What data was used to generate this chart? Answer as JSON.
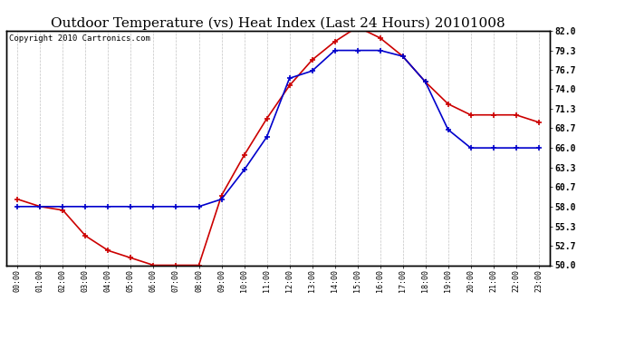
{
  "title": "Outdoor Temperature (vs) Heat Index (Last 24 Hours) 20101008",
  "copyright": "Copyright 2010 Cartronics.com",
  "x_labels": [
    "00:00",
    "01:00",
    "02:00",
    "03:00",
    "04:00",
    "05:00",
    "06:00",
    "07:00",
    "08:00",
    "09:00",
    "10:00",
    "11:00",
    "12:00",
    "13:00",
    "14:00",
    "15:00",
    "16:00",
    "17:00",
    "18:00",
    "19:00",
    "20:00",
    "21:00",
    "22:00",
    "23:00"
  ],
  "temp_data": [
    59.0,
    58.0,
    57.5,
    54.0,
    52.0,
    51.0,
    50.0,
    50.0,
    50.0,
    59.5,
    65.0,
    70.0,
    74.5,
    78.0,
    80.5,
    82.5,
    81.0,
    78.5,
    75.0,
    72.0,
    70.5,
    70.5,
    70.5,
    69.5
  ],
  "heat_data": [
    58.0,
    58.0,
    58.0,
    58.0,
    58.0,
    58.0,
    58.0,
    58.0,
    58.0,
    59.0,
    63.0,
    67.5,
    75.5,
    76.5,
    79.3,
    79.3,
    79.3,
    78.5,
    75.0,
    68.5,
    66.0,
    66.0,
    66.0,
    66.0
  ],
  "temp_color": "#cc0000",
  "heat_color": "#0000cc",
  "ylim": [
    50.0,
    82.0
  ],
  "yticks": [
    50.0,
    52.7,
    55.3,
    58.0,
    60.7,
    63.3,
    66.0,
    68.7,
    71.3,
    74.0,
    76.7,
    79.3,
    82.0
  ],
  "background_color": "#ffffff",
  "plot_bg_color": "#ffffff",
  "grid_color": "#aaaaaa",
  "title_fontsize": 11,
  "copyright_fontsize": 6.5
}
